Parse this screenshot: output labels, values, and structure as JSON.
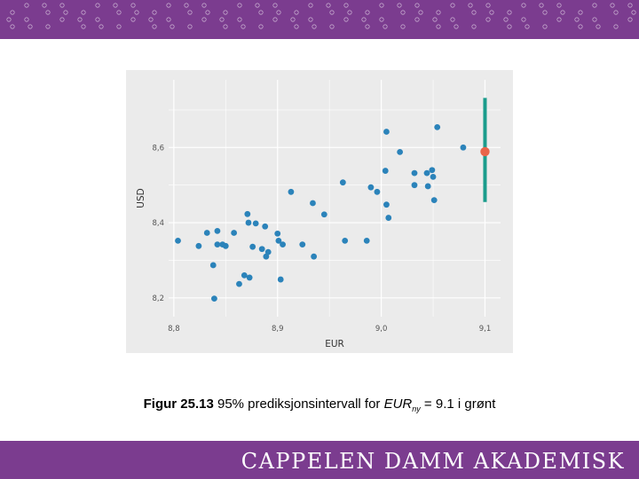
{
  "brand": {
    "name": "CAPPELEN DAMM AKADEMISK"
  },
  "colors": {
    "band": "#7b3c8f",
    "points": "#2b83ba",
    "interval": "#1a9c8c",
    "prediction": "#e8654a",
    "panel": "#ebebeb",
    "grid": "#ffffff"
  },
  "caption": {
    "label": "Figur 25.13",
    "text_before": " 95% prediksjonsintervall for ",
    "var_main": "EUR",
    "var_sub": "ny",
    "text_after": " = 9.1 i grønt"
  },
  "chart_data": {
    "type": "scatter",
    "xlabel": "EUR",
    "ylabel": "USD",
    "xlim": [
      8.795,
      9.115
    ],
    "ylim": [
      8.15,
      8.78
    ],
    "xticks": [
      8.8,
      8.9,
      9.0,
      9.1
    ],
    "xtick_labels": [
      "8,8",
      "8,9",
      "9,0",
      "9,1"
    ],
    "yticks": [
      8.2,
      8.4,
      8.6
    ],
    "ytick_labels": [
      "8,2",
      "8,4",
      "8,6"
    ],
    "grid": true,
    "points": [
      {
        "x": 8.804,
        "y": 8.352
      },
      {
        "x": 8.824,
        "y": 8.338
      },
      {
        "x": 8.832,
        "y": 8.373
      },
      {
        "x": 8.838,
        "y": 8.287
      },
      {
        "x": 8.839,
        "y": 8.198
      },
      {
        "x": 8.842,
        "y": 8.378
      },
      {
        "x": 8.842,
        "y": 8.342
      },
      {
        "x": 8.847,
        "y": 8.342
      },
      {
        "x": 8.85,
        "y": 8.338
      },
      {
        "x": 8.858,
        "y": 8.373
      },
      {
        "x": 8.863,
        "y": 8.237
      },
      {
        "x": 8.868,
        "y": 8.26
      },
      {
        "x": 8.871,
        "y": 8.423
      },
      {
        "x": 8.872,
        "y": 8.4
      },
      {
        "x": 8.873,
        "y": 8.254
      },
      {
        "x": 8.876,
        "y": 8.336
      },
      {
        "x": 8.879,
        "y": 8.398
      },
      {
        "x": 8.885,
        "y": 8.33
      },
      {
        "x": 8.888,
        "y": 8.39
      },
      {
        "x": 8.889,
        "y": 8.31
      },
      {
        "x": 8.891,
        "y": 8.322
      },
      {
        "x": 8.9,
        "y": 8.371
      },
      {
        "x": 8.901,
        "y": 8.352
      },
      {
        "x": 8.903,
        "y": 8.249
      },
      {
        "x": 8.905,
        "y": 8.342
      },
      {
        "x": 8.913,
        "y": 8.482
      },
      {
        "x": 8.924,
        "y": 8.342
      },
      {
        "x": 8.934,
        "y": 8.452
      },
      {
        "x": 8.935,
        "y": 8.31
      },
      {
        "x": 8.945,
        "y": 8.422
      },
      {
        "x": 8.963,
        "y": 8.507
      },
      {
        "x": 8.965,
        "y": 8.352
      },
      {
        "x": 8.986,
        "y": 8.352
      },
      {
        "x": 8.99,
        "y": 8.494
      },
      {
        "x": 8.996,
        "y": 8.482
      },
      {
        "x": 9.004,
        "y": 8.538
      },
      {
        "x": 9.005,
        "y": 8.642
      },
      {
        "x": 9.005,
        "y": 8.448
      },
      {
        "x": 9.007,
        "y": 8.413
      },
      {
        "x": 9.018,
        "y": 8.588
      },
      {
        "x": 9.032,
        "y": 8.532
      },
      {
        "x": 9.032,
        "y": 8.5
      },
      {
        "x": 9.044,
        "y": 8.532
      },
      {
        "x": 9.045,
        "y": 8.497
      },
      {
        "x": 9.049,
        "y": 8.54
      },
      {
        "x": 9.05,
        "y": 8.522
      },
      {
        "x": 9.051,
        "y": 8.46
      },
      {
        "x": 9.054,
        "y": 8.654
      },
      {
        "x": 9.079,
        "y": 8.6
      }
    ],
    "prediction": {
      "x": 9.1,
      "y": 8.589,
      "lower": 8.455,
      "upper": 8.732
    }
  }
}
